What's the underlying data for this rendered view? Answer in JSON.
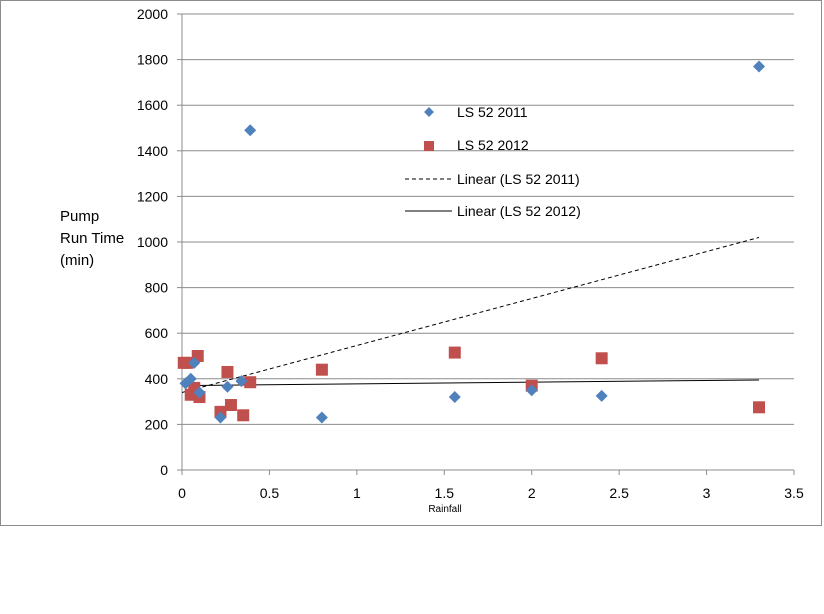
{
  "chart_data": {
    "type": "scatter",
    "title": "",
    "xlabel": "Rainfall",
    "ylabel_lines": [
      "Pump",
      "Run Time",
      "(min)"
    ],
    "xlim": [
      0,
      3.5
    ],
    "ylim": [
      0,
      2000
    ],
    "x_ticks": [
      0,
      0.5,
      1,
      1.5,
      2,
      2.5,
      3,
      3.5
    ],
    "x_tick_labels": [
      "0",
      "0.5",
      "1",
      "1.5",
      "2",
      "2.5",
      "3",
      "3.5"
    ],
    "y_ticks": [
      0,
      200,
      400,
      600,
      800,
      1000,
      1200,
      1400,
      1600,
      1800,
      2000
    ],
    "y_tick_labels": [
      "0",
      "200",
      "400",
      "600",
      "800",
      "1000",
      "1200",
      "1400",
      "1600",
      "1800",
      "2000"
    ],
    "grid": "horizontal",
    "legend_position": "upper-center",
    "series": [
      {
        "name": "LS 52 2011",
        "marker": "diamond",
        "color": "#4f81bd",
        "points": [
          [
            0.02,
            380
          ],
          [
            0.05,
            400
          ],
          [
            0.07,
            470
          ],
          [
            0.1,
            340
          ],
          [
            0.22,
            230
          ],
          [
            0.26,
            365
          ],
          [
            0.34,
            390
          ],
          [
            0.39,
            1490
          ],
          [
            0.8,
            230
          ],
          [
            1.56,
            320
          ],
          [
            2.0,
            350
          ],
          [
            2.4,
            325
          ],
          [
            3.3,
            1770
          ]
        ]
      },
      {
        "name": "LS 52 2012",
        "marker": "square",
        "color": "#c0504d",
        "points": [
          [
            0.01,
            470
          ],
          [
            0.03,
            470
          ],
          [
            0.05,
            330
          ],
          [
            0.07,
            360
          ],
          [
            0.09,
            500
          ],
          [
            0.1,
            320
          ],
          [
            0.22,
            255
          ],
          [
            0.26,
            430
          ],
          [
            0.28,
            285
          ],
          [
            0.35,
            240
          ],
          [
            0.39,
            385
          ],
          [
            0.8,
            440
          ],
          [
            1.56,
            515
          ],
          [
            2.0,
            370
          ],
          [
            2.4,
            490
          ],
          [
            3.3,
            275
          ]
        ]
      }
    ],
    "trendlines": [
      {
        "name": "Linear (LS 52 2011)",
        "style": "dashed",
        "color": "#000000",
        "x": [
          0,
          3.3
        ],
        "y": [
          340,
          1020
        ]
      },
      {
        "name": "Linear (LS 52 2012)",
        "style": "solid",
        "color": "#000000",
        "x": [
          0,
          3.3
        ],
        "y": [
          370,
          395
        ]
      }
    ]
  }
}
